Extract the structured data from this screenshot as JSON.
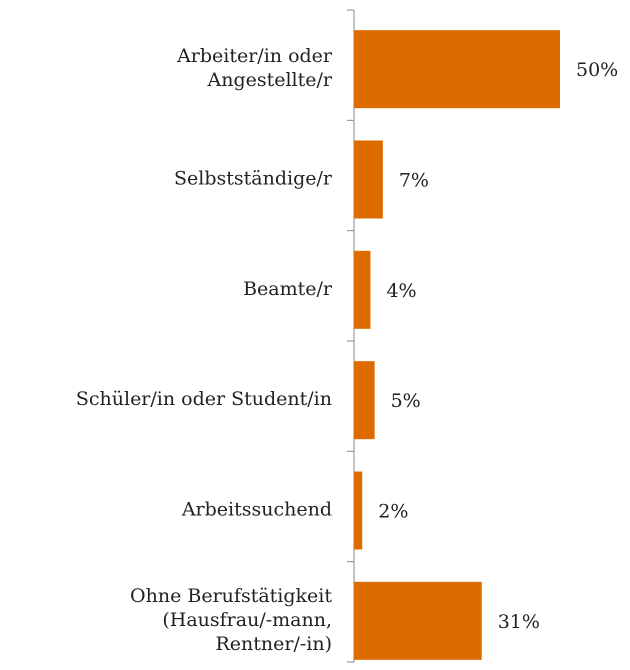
{
  "chart_data": {
    "type": "barh",
    "categories": [
      "Arbeiter/in oder\nAngestellte/r",
      "Selbstständige/r",
      "Beamte/r",
      "Schüler/in oder Student/in",
      "Arbeitssuchend",
      "Ohne Berufstätigkeit\n(Hausfrau/-mann,\nRentner/-in)"
    ],
    "values": [
      50,
      7,
      4,
      5,
      2,
      31
    ],
    "value_labels": [
      "50%",
      "7%",
      "4%",
      "5%",
      "2%",
      "31%"
    ],
    "color": "#de6b00",
    "xlim": [
      0,
      50
    ]
  }
}
